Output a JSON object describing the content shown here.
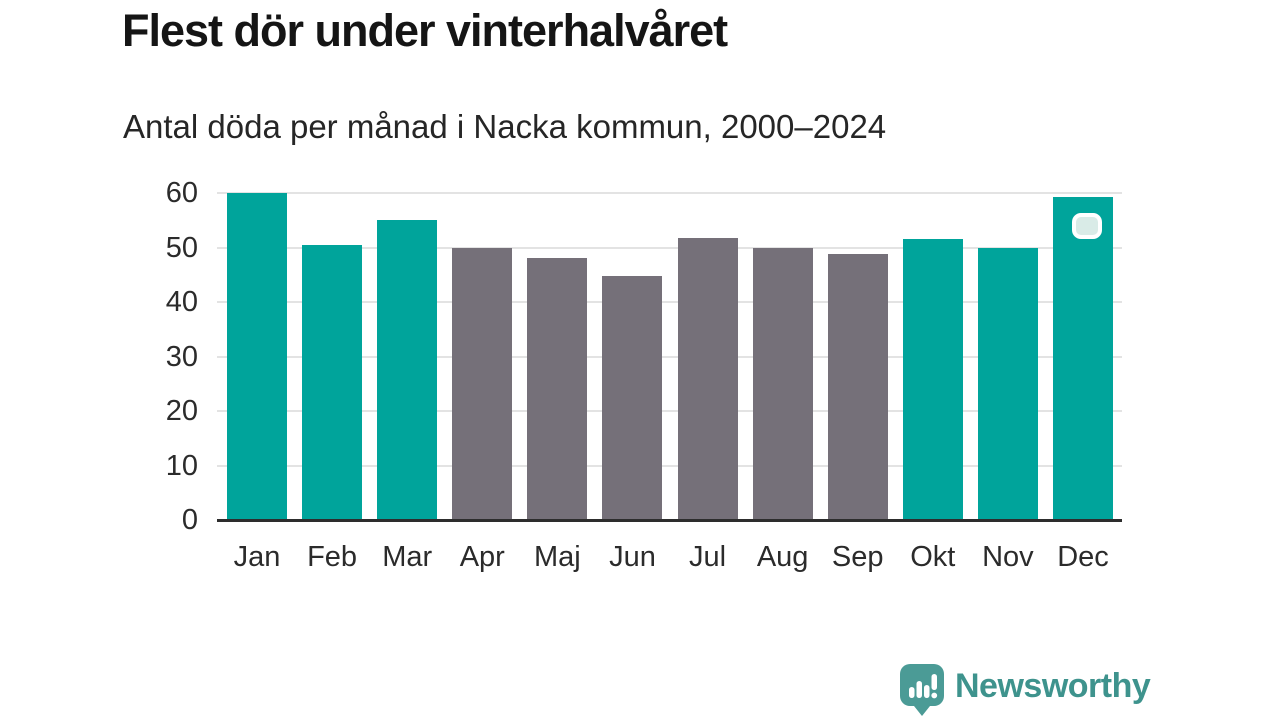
{
  "header": {
    "title": "Flest dör under vinterhalvåret",
    "subtitle": "Antal döda per månad i Nacka kommun, 2000–2024"
  },
  "chart_data": {
    "type": "bar",
    "title": "Flest dör under vinterhalvåret",
    "subtitle": "Antal döda per månad i Nacka kommun, 2000–2024",
    "categories": [
      "Jan",
      "Feb",
      "Mar",
      "Apr",
      "Maj",
      "Jun",
      "Jul",
      "Aug",
      "Sep",
      "Okt",
      "Nov",
      "Dec"
    ],
    "values": [
      60,
      50.5,
      55,
      50,
      48,
      44.8,
      51.8,
      50,
      48.8,
      51.5,
      50,
      59.2
    ],
    "series_groups": [
      "winter",
      "winter",
      "winter",
      "summer",
      "summer",
      "summer",
      "summer",
      "summer",
      "summer",
      "winter",
      "winter",
      "winter"
    ],
    "group_colors": {
      "winter": "#00a49b",
      "summer": "#757079"
    },
    "xlabel": "",
    "ylabel": "",
    "y_ticks": [
      0,
      10,
      20,
      30,
      40,
      50,
      60
    ],
    "ylim": [
      0,
      60
    ],
    "grid": true,
    "gridline_color": "#e3e3e3",
    "axis_color": "#2d2d2d",
    "marker": {
      "category": "Dec",
      "fill": "#d9ebe7",
      "border": "#ffffff"
    }
  },
  "footer": {
    "brand": "Newsworthy",
    "brand_color": "#3e938d",
    "logo_icon": "speech-bubble-bar-chart-icon",
    "logo_color": "#4b9b96"
  }
}
